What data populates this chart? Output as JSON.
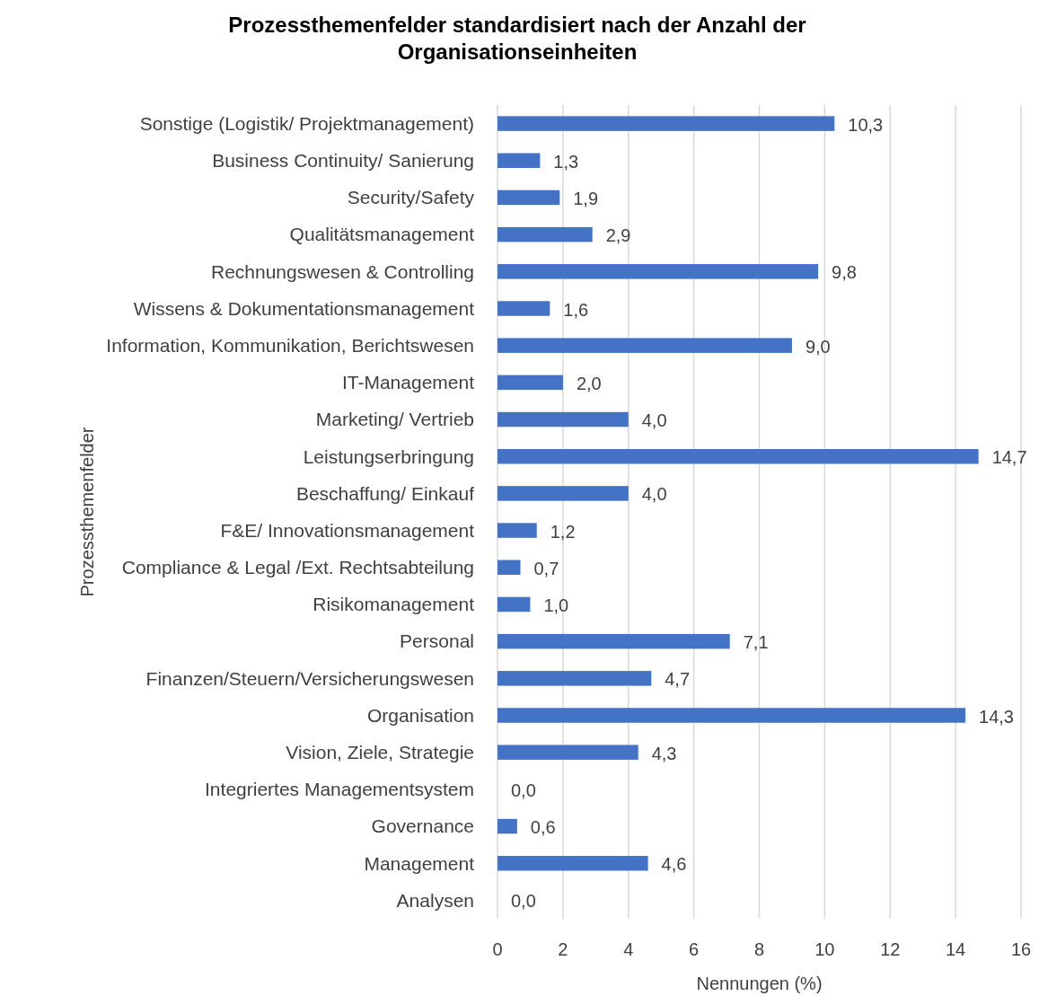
{
  "chart_data": {
    "type": "bar",
    "orientation": "horizontal",
    "title": "Prozessthemenfelder standardisiert nach der Anzahl der Organisationseinheiten",
    "xlabel": "Nennungen (%)",
    "ylabel": "Prozessthemenfelder",
    "categories": [
      "Sonstige (Logistik/ Projektmanagement)",
      "Business Continuity/ Sanierung",
      "Security/Safety",
      "Qualitätsmanagement",
      "Rechnungswesen & Controlling",
      "Wissens & Dokumentationsmanagement",
      "Information, Kommunikation, Berichtswesen",
      "IT-Management",
      "Marketing/ Vertrieb",
      "Leistungserbringung",
      "Beschaffung/ Einkauf",
      "F&E/ Innovationsmanagement",
      "Compliance & Legal /Ext. Rechtsabteilung",
      "Risikomanagement",
      "Personal",
      "Finanzen/Steuern/Versicherungswesen",
      "Organisation",
      "Vision, Ziele, Strategie",
      "Integriertes Managementsystem",
      "Governance",
      "Management",
      "Analysen"
    ],
    "values": [
      10.3,
      1.3,
      1.9,
      2.9,
      9.8,
      1.6,
      9.0,
      2.0,
      4.0,
      14.7,
      4.0,
      1.2,
      0.7,
      1.0,
      7.1,
      4.7,
      14.3,
      4.3,
      0.0,
      0.6,
      4.6,
      0.0
    ],
    "value_labels": [
      "10,3",
      "1,3",
      "1,9",
      "2,9",
      "9,8",
      "1,6",
      "9,0",
      "2,0",
      "4,0",
      "14,7",
      "4,0",
      "1,2",
      "0,7",
      "1,0",
      "7,1",
      "4,7",
      "14,3",
      "4,3",
      "0,0",
      "0,6",
      "4,6",
      "0,0"
    ],
    "color": "#4472c4",
    "xlim": [
      0,
      16
    ],
    "xticks": [
      0,
      2,
      4,
      6,
      8,
      10,
      12,
      14,
      16
    ],
    "grid": "x"
  }
}
